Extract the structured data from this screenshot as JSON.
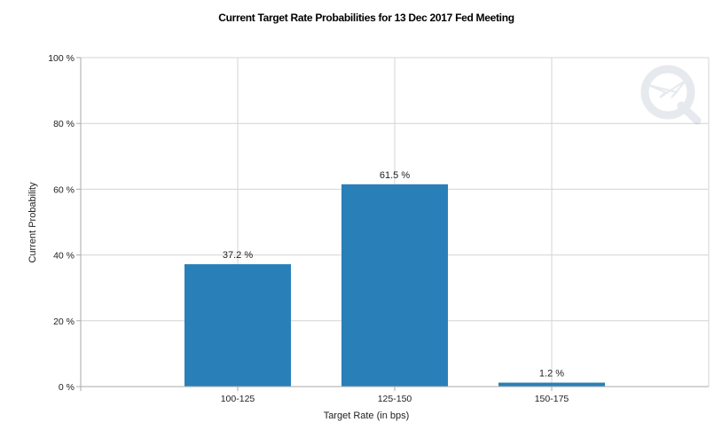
{
  "chart_data": {
    "type": "bar",
    "title": "Current Target Rate Probabilities for 13 Dec 2017 Fed Meeting",
    "xlabel": "Target Rate (in bps)",
    "ylabel": "Current Probability",
    "categories": [
      "100-125",
      "125-150",
      "150-175"
    ],
    "values": [
      37.2,
      61.5,
      1.2
    ],
    "data_labels": [
      "37.2 %",
      "61.5 %",
      "1.2 %"
    ],
    "ylim": [
      0,
      100
    ],
    "yticks": [
      0,
      20,
      40,
      60,
      80,
      100
    ],
    "ytick_labels": [
      "0 %",
      "20 %",
      "40 %",
      "60 %",
      "80 %",
      "100 %"
    ],
    "grid": true,
    "bar_color": "#2980b9"
  }
}
